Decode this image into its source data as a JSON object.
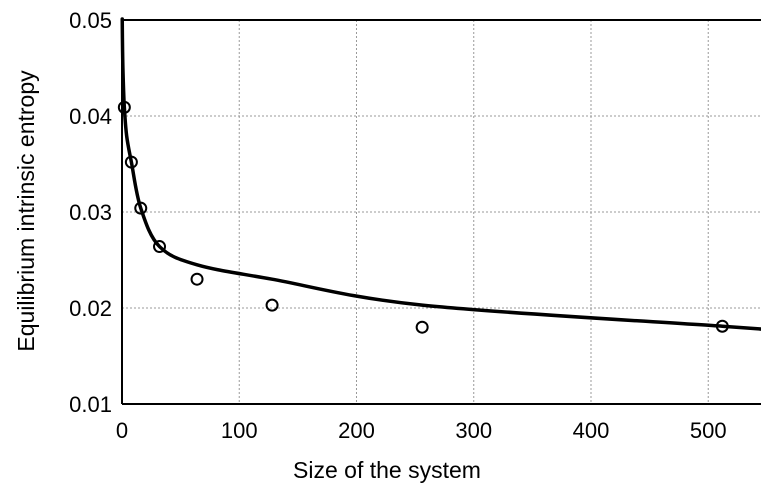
{
  "chart_data": {
    "type": "scatter",
    "xlabel": "Size of the system",
    "ylabel": "Equilibrium intrinsic entropy",
    "xlim": [
      0,
      545
    ],
    "ylim": [
      0.01,
      0.05
    ],
    "x_ticks": [
      "0",
      "100",
      "200",
      "300",
      "400",
      "500"
    ],
    "y_ticks": [
      "0.01",
      "0.02",
      "0.03",
      "0.04",
      "0.05"
    ],
    "grid": true,
    "series": [
      {
        "kind": "points",
        "marker": "open-circle",
        "x": [
          2,
          8,
          16,
          32,
          64,
          128,
          256,
          512
        ],
        "y": [
          0.0409,
          0.0352,
          0.0304,
          0.0264,
          0.023,
          0.0203,
          0.018,
          0.0181
        ]
      },
      {
        "kind": "fit-curve",
        "x": [
          0.2,
          0.5,
          1,
          2,
          4,
          8,
          16,
          32,
          64,
          128,
          256,
          512,
          545
        ],
        "y": [
          0.0501,
          0.0467,
          0.044,
          0.0409,
          0.0379,
          0.0352,
          0.0304,
          0.0264,
          0.0245,
          0.023,
          0.0203,
          0.0181,
          0.0178
        ]
      }
    ]
  },
  "colors": {
    "line": "#000000",
    "grid": "#9a9a9a",
    "background": "#ffffff"
  }
}
